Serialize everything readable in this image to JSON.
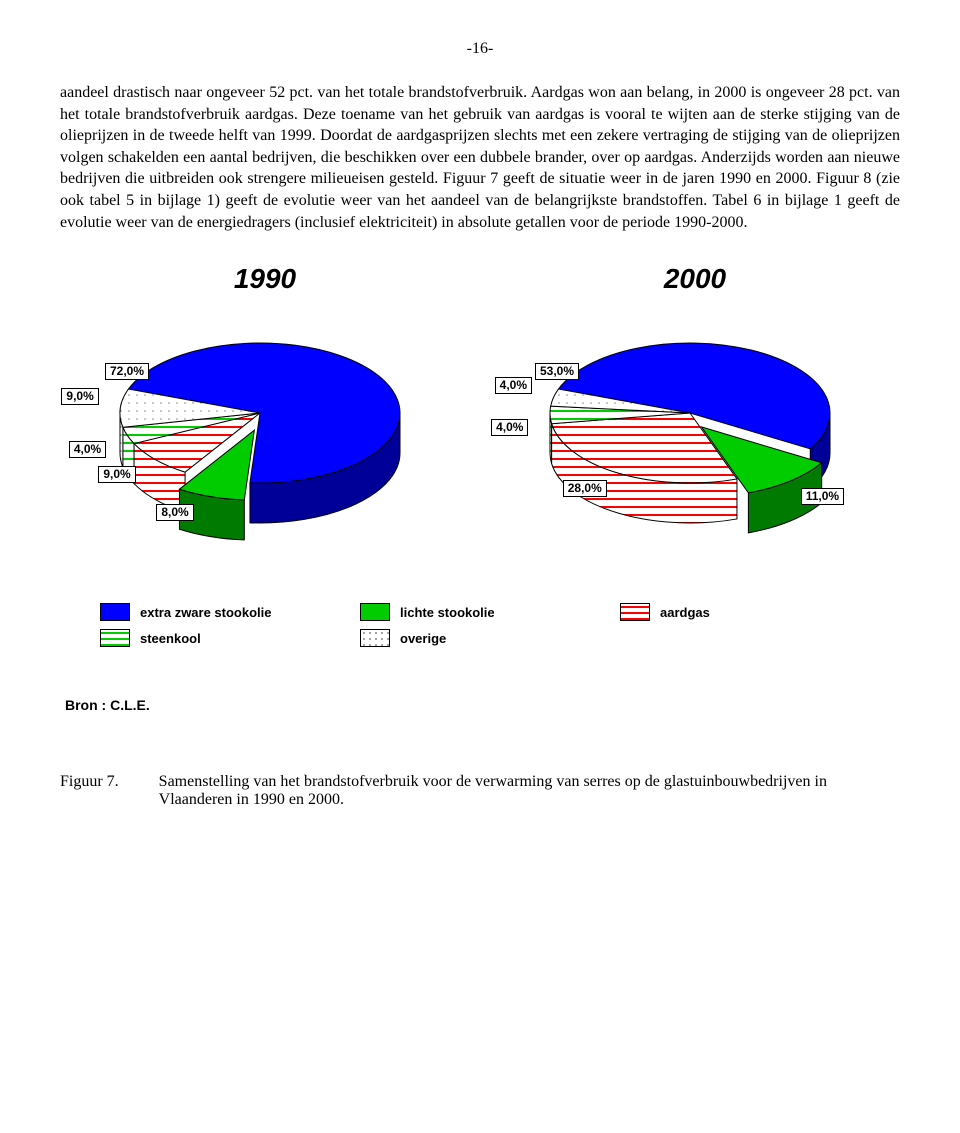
{
  "page_number": "-16-",
  "body_text": "aandeel drastisch naar ongeveer 52 pct. van het totale brandstofverbruik. Aardgas won aan belang, in 2000 is ongeveer 28 pct. van het totale brandstofverbruik aardgas. Deze toename van het gebruik van aardgas is vooral te wijten aan de sterke stijging van de olieprijzen in de tweede helft van 1999. Doordat de aardgasprijzen slechts met een zekere vertraging de stijging van de olieprijzen volgen schakelden een aantal bedrijven, die beschikken over een dubbele brander, over op aardgas. Anderzijds worden aan nieuwe bedrijven die uitbreiden ook strengere milieueisen gesteld. Figuur 7 geeft de situatie weer in de jaren 1990 en 2000. Figuur 8 (zie ook tabel 5 in bijlage 1) geeft de evolutie weer van het aandeel van de belangrijkste brandstoffen. Tabel 6 in bijlage 1 geeft de evolutie weer van de energiedragers (inclusief elektriciteit) in absolute getallen voor de periode 1990-2000.",
  "chart1990": {
    "title": "1990",
    "type": "pie-3d",
    "slices": [
      {
        "label": "extra zware stookolie",
        "value": 72.0,
        "display": "72,0%",
        "color": "#0000ff",
        "pattern": "solid"
      },
      {
        "label": "lichte stookolie",
        "value": 8.0,
        "display": "8,0%",
        "color": "#00cc00",
        "pattern": "solid",
        "exploded": true
      },
      {
        "label": "aardgas",
        "value": 9.0,
        "display": "9,0%",
        "color": "#ff0000",
        "pattern": "hstripe"
      },
      {
        "label": "steenkool",
        "value": 4.0,
        "display": "4,0%",
        "color": "#00cc00",
        "pattern": "hstripe"
      },
      {
        "label": "overige",
        "value": 9.0,
        "display": "9,0%",
        "color": "#ffffff",
        "pattern": "dots"
      }
    ]
  },
  "chart2000": {
    "title": "2000",
    "type": "pie-3d",
    "slices": [
      {
        "label": "extra zware stookolie",
        "value": 53.0,
        "display": "53,0%",
        "color": "#0000ff",
        "pattern": "solid"
      },
      {
        "label": "lichte stookolie",
        "value": 11.0,
        "display": "11,0%",
        "color": "#00cc00",
        "pattern": "solid",
        "exploded": true
      },
      {
        "label": "aardgas",
        "value": 28.0,
        "display": "28,0%",
        "color": "#ff0000",
        "pattern": "hstripe"
      },
      {
        "label": "steenkool",
        "value": 4.0,
        "display": "4,0%",
        "color": "#00cc00",
        "pattern": "hstripe"
      },
      {
        "label": "overige",
        "value": 4.0,
        "display": "4,0%",
        "color": "#ffffff",
        "pattern": "dots"
      }
    ]
  },
  "legend": {
    "items": [
      {
        "label": "extra zware stookolie",
        "color": "#0000ff",
        "pattern": "solid"
      },
      {
        "label": "lichte stookolie",
        "color": "#00cc00",
        "pattern": "solid"
      },
      {
        "label": "aardgas",
        "color": "#ff0000",
        "pattern": "hstripe"
      },
      {
        "label": "steenkool",
        "color": "#00cc00",
        "pattern": "hstripe"
      },
      {
        "label": "overige",
        "color": "#ffffff",
        "pattern": "dots"
      }
    ]
  },
  "source": "Bron : C.L.E.",
  "caption_label": "Figuur 7.",
  "caption_text": "Samenstelling van het brandstofverbruik voor de verwarming van serres op de glastuinbouwbedrijven in Vlaanderen in 1990 en 2000.",
  "style": {
    "body_font": "Times New Roman",
    "body_fontsize_pt": 12,
    "chart_title_font": "Arial",
    "chart_title_fontsize_pt": 22,
    "chart_title_bold_italic": true,
    "label_box_bg": "#ffffff",
    "label_box_border": "#000000",
    "pie_outline": "#000000",
    "background": "#ffffff"
  }
}
